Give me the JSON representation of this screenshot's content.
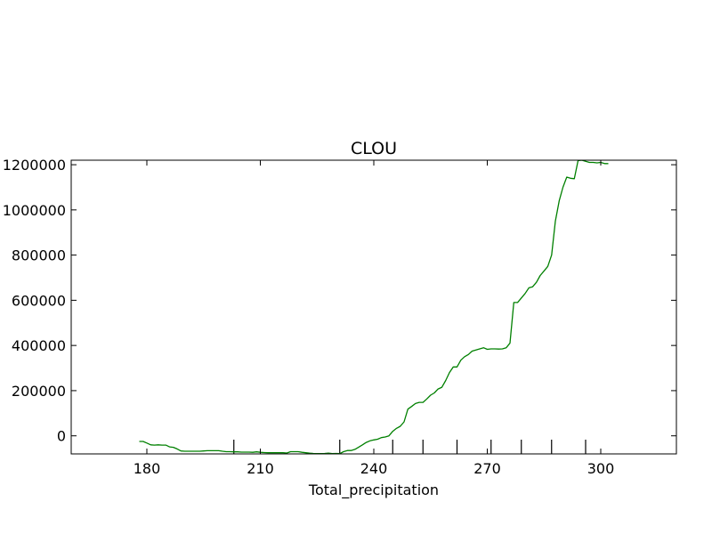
{
  "chart_data": {
    "type": "line",
    "title": "CLOU",
    "xlabel": "Total_precipitation",
    "ylabel": "",
    "xlim": [
      160,
      320
    ],
    "ylim": [
      -80000,
      1220000
    ],
    "x_ticks": [
      180,
      210,
      240,
      270,
      300
    ],
    "x_tick_labels": [
      "180",
      "210",
      "240",
      "270",
      "300"
    ],
    "y_ticks": [
      0,
      200000,
      400000,
      600000,
      800000,
      1000000,
      1200000
    ],
    "y_tick_labels": [
      "0",
      "200000",
      "400000",
      "600000",
      "800000",
      "1000000",
      "1200000"
    ],
    "grid": false,
    "legend": "none",
    "rug_x": [
      203,
      231,
      245,
      253,
      262,
      271,
      279,
      287,
      296
    ],
    "series": [
      {
        "color": "#008000",
        "x": [
          178,
          179,
          180,
          181,
          182,
          183,
          184,
          185,
          186,
          187,
          188,
          189,
          190,
          191,
          192,
          193,
          194,
          195,
          196,
          197,
          198,
          199,
          200,
          201,
          202,
          203,
          204,
          205,
          206,
          207,
          208,
          209,
          210,
          211,
          212,
          213,
          214,
          215,
          216,
          217,
          218,
          219,
          220,
          221,
          222,
          223,
          224,
          225,
          226,
          227,
          228,
          229,
          230,
          231,
          232,
          233,
          234,
          235,
          236,
          237,
          238,
          239,
          240,
          241,
          242,
          243,
          244,
          245,
          246,
          247,
          248,
          249,
          250,
          251,
          252,
          253,
          254,
          255,
          256,
          257,
          258,
          259,
          260,
          261,
          262,
          263,
          264,
          265,
          266,
          267,
          268,
          269,
          270,
          271,
          272,
          273,
          274,
          275,
          276,
          277,
          278,
          279,
          280,
          281,
          282,
          283,
          284,
          285,
          286,
          287,
          288,
          289,
          290,
          291,
          292,
          293,
          294,
          295,
          296,
          297,
          298,
          299,
          300,
          301,
          302
        ],
        "y": [
          -25000,
          -25000,
          -32000,
          -40000,
          -41000,
          -40000,
          -41000,
          -41000,
          -49000,
          -51000,
          -58000,
          -67000,
          -68000,
          -68000,
          -68000,
          -68000,
          -68000,
          -67000,
          -66000,
          -66000,
          -66000,
          -66000,
          -68000,
          -70000,
          -70000,
          -71000,
          -71000,
          -72000,
          -72000,
          -72000,
          -73000,
          -71000,
          -73000,
          -74000,
          -75000,
          -75000,
          -75000,
          -75000,
          -75000,
          -76000,
          -70000,
          -70000,
          -70000,
          -73000,
          -75000,
          -77000,
          -78000,
          -79000,
          -79000,
          -78000,
          -77000,
          -79000,
          -78000,
          -79000,
          -70000,
          -65000,
          -65000,
          -60000,
          -50000,
          -40000,
          -29000,
          -22000,
          -18000,
          -15000,
          -8000,
          -5000,
          0,
          20000,
          33000,
          42000,
          62000,
          118000,
          130000,
          143000,
          148000,
          148000,
          163000,
          180000,
          190000,
          207000,
          215000,
          245000,
          280000,
          305000,
          305000,
          335000,
          350000,
          360000,
          375000,
          380000,
          385000,
          390000,
          383000,
          385000,
          385000,
          384000,
          385000,
          390000,
          410000,
          590000,
          590000,
          610000,
          630000,
          655000,
          660000,
          680000,
          710000,
          730000,
          750000,
          800000,
          950000,
          1040000,
          1100000,
          1145000,
          1140000,
          1138000,
          1218000,
          1220000,
          1215000,
          1210000,
          1210000,
          1208000,
          1210000,
          1205000,
          1205000
        ]
      }
    ]
  }
}
